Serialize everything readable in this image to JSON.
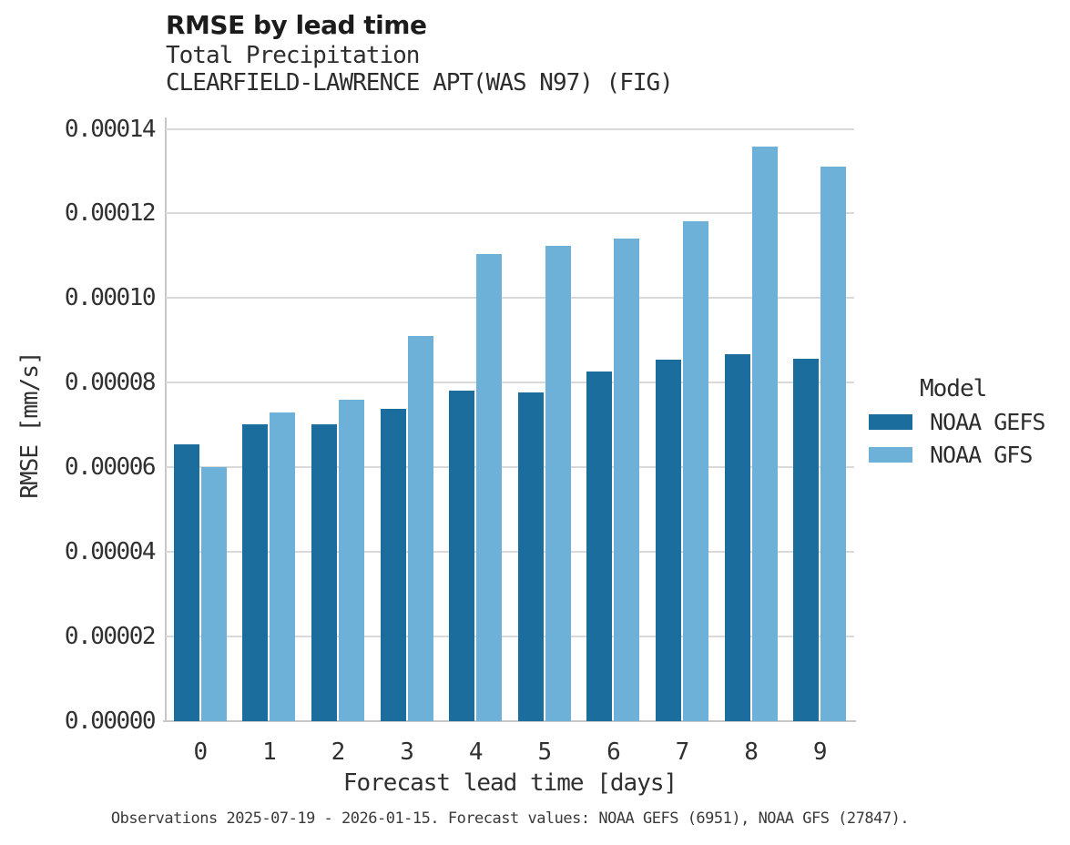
{
  "header": {
    "title": "RMSE by lead time",
    "subtitle1": "Total Precipitation",
    "subtitle2": "CLEARFIELD-LAWRENCE APT(WAS N97) (FIG)"
  },
  "chart_data": {
    "type": "bar",
    "title": "RMSE by lead time",
    "subtitle": [
      "Total Precipitation",
      "CLEARFIELD-LAWRENCE APT(WAS N97) (FIG)"
    ],
    "categories": [
      "0",
      "1",
      "2",
      "3",
      "4",
      "5",
      "6",
      "7",
      "8",
      "9"
    ],
    "series": [
      {
        "name": "NOAA GEFS",
        "color": "#1b6d9e",
        "values": [
          6.55e-05,
          7.01e-05,
          7.01e-05,
          7.38e-05,
          7.81e-05,
          7.76e-05,
          8.27e-05,
          8.55e-05,
          8.68e-05,
          8.57e-05
        ]
      },
      {
        "name": "NOAA GFS",
        "color": "#6db1d8",
        "values": [
          6e-05,
          7.3e-05,
          7.6e-05,
          9.11e-05,
          0.0001103,
          0.0001124,
          0.0001141,
          0.0001181,
          0.0001357,
          0.0001311
        ]
      }
    ],
    "xlabel": "Forecast lead time [days]",
    "ylabel": "RMSE [mm/s]",
    "ylim": [
      0,
      0.00014
    ],
    "y_ticks": [
      {
        "value": 0.0,
        "label": "0.00000"
      },
      {
        "value": 2e-05,
        "label": "0.00002"
      },
      {
        "value": 4e-05,
        "label": "0.00004"
      },
      {
        "value": 6e-05,
        "label": "0.00006"
      },
      {
        "value": 8e-05,
        "label": "0.00008"
      },
      {
        "value": 0.0001,
        "label": "0.00010"
      },
      {
        "value": 0.00012,
        "label": "0.00012"
      },
      {
        "value": 0.00014,
        "label": "0.00014"
      }
    ],
    "grid": "horizontal",
    "legend": {
      "title": "Model",
      "position": "right"
    }
  },
  "caption": "Observations 2025-07-19 - 2026-01-15. Forecast values: NOAA GEFS (6951), NOAA GFS (27847)."
}
